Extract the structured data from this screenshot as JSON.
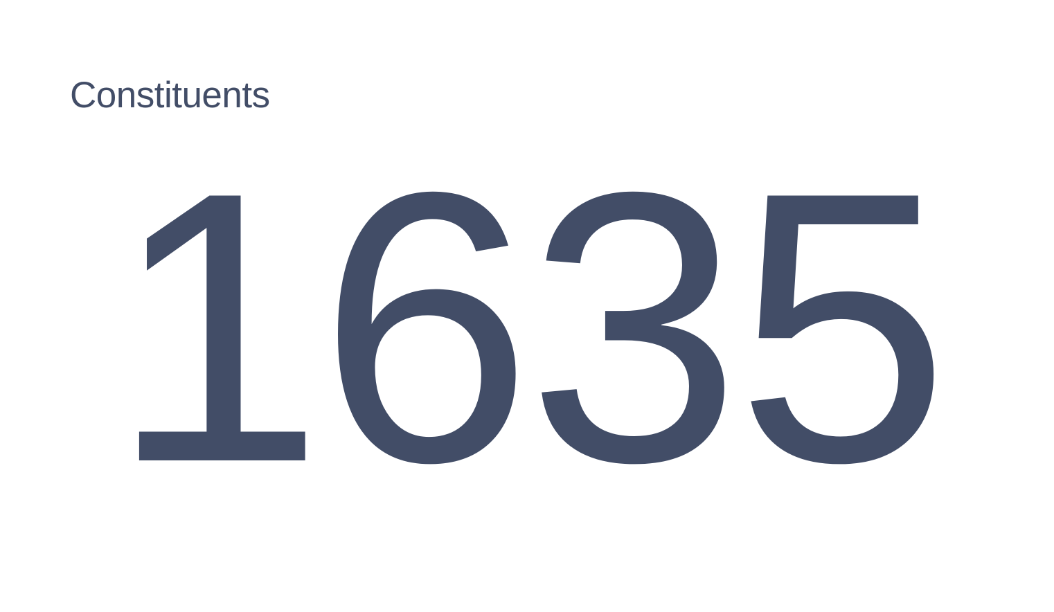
{
  "metric": {
    "label": "Constituents",
    "value": "1635"
  },
  "colors": {
    "text": "#424d67",
    "background": "#ffffff"
  }
}
